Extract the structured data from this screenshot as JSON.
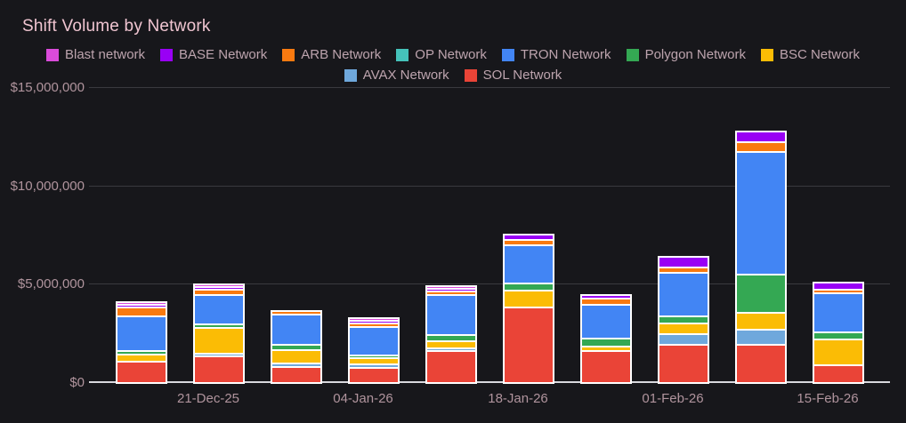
{
  "title": "Shift Volume by Network",
  "theme": {
    "background": "#17171b",
    "title_color": "#f0c5d1",
    "legend_text_color": "#bda4ae",
    "axis_text_color": "#b0949d",
    "gridline_color": "#3a3a3f",
    "zero_line_color": "#d9d9de",
    "bar_border_color": "#ffffff"
  },
  "chart_data": {
    "type": "bar",
    "stacked": true,
    "title": "Shift Volume by Network",
    "xlabel": "",
    "ylabel": "",
    "ylim": [
      0,
      15000000
    ],
    "grid": true,
    "legend_position": "top",
    "y_ticks": [
      {
        "value": 15000000,
        "label": "$15,000,000"
      },
      {
        "value": 10000000,
        "label": "$10,000,000"
      },
      {
        "value": 5000000,
        "label": "$5,000,000"
      },
      {
        "value": 0,
        "label": "$0"
      }
    ],
    "x_ticks": [
      {
        "bar_index": 1,
        "label": "21-Dec-25"
      },
      {
        "bar_index": 3,
        "label": "04-Jan-26"
      },
      {
        "bar_index": 5,
        "label": "18-Jan-26"
      },
      {
        "bar_index": 7,
        "label": "01-Feb-26"
      },
      {
        "bar_index": 9,
        "label": "15-Feb-26"
      }
    ],
    "bar_count": 10,
    "stack_order_bottom_to_top": [
      "SOL Network",
      "AVAX Network",
      "BSC Network",
      "Polygon Network",
      "TRON Network",
      "OP Network",
      "ARB Network",
      "BASE Network",
      "Blast network"
    ],
    "series": [
      {
        "name": "Blast network",
        "color": "#da4bda",
        "values": [
          50000,
          100000,
          0,
          70000,
          70000,
          0,
          0,
          0,
          0,
          0
        ]
      },
      {
        "name": "BASE Network",
        "color": "#9900f5",
        "values": [
          70000,
          120000,
          0,
          120000,
          100000,
          250000,
          190000,
          550000,
          560000,
          350000
        ]
      },
      {
        "name": "ARB Network",
        "color": "#f97a10",
        "values": [
          430000,
          260000,
          160000,
          160000,
          170000,
          260000,
          310000,
          280000,
          510000,
          160000
        ]
      },
      {
        "name": "OP Network",
        "color": "#45c2ba",
        "values": [
          0,
          0,
          0,
          0,
          0,
          0,
          0,
          0,
          0,
          0
        ]
      },
      {
        "name": "TRON Network",
        "color": "#4285f4",
        "values": [
          1780000,
          1500000,
          1550000,
          1450000,
          2050000,
          1950000,
          1700000,
          2200000,
          6250000,
          2000000
        ]
      },
      {
        "name": "Polygon Network",
        "color": "#34a853",
        "values": [
          180000,
          170000,
          270000,
          130000,
          310000,
          350000,
          400000,
          370000,
          1950000,
          340000
        ]
      },
      {
        "name": "BSC Network",
        "color": "#fbbc05",
        "values": [
          360000,
          1300000,
          680000,
          310000,
          350000,
          840000,
          240000,
          560000,
          840000,
          1330000
        ]
      },
      {
        "name": "AVAX Network",
        "color": "#6fa8dc",
        "values": [
          0,
          110000,
          160000,
          160000,
          120000,
          0,
          0,
          560000,
          760000,
          0
        ]
      },
      {
        "name": "SOL Network",
        "color": "#ea4437",
        "values": [
          1070000,
          1350000,
          820000,
          750000,
          1650000,
          3850000,
          1650000,
          1950000,
          1950000,
          900000
        ]
      }
    ]
  }
}
